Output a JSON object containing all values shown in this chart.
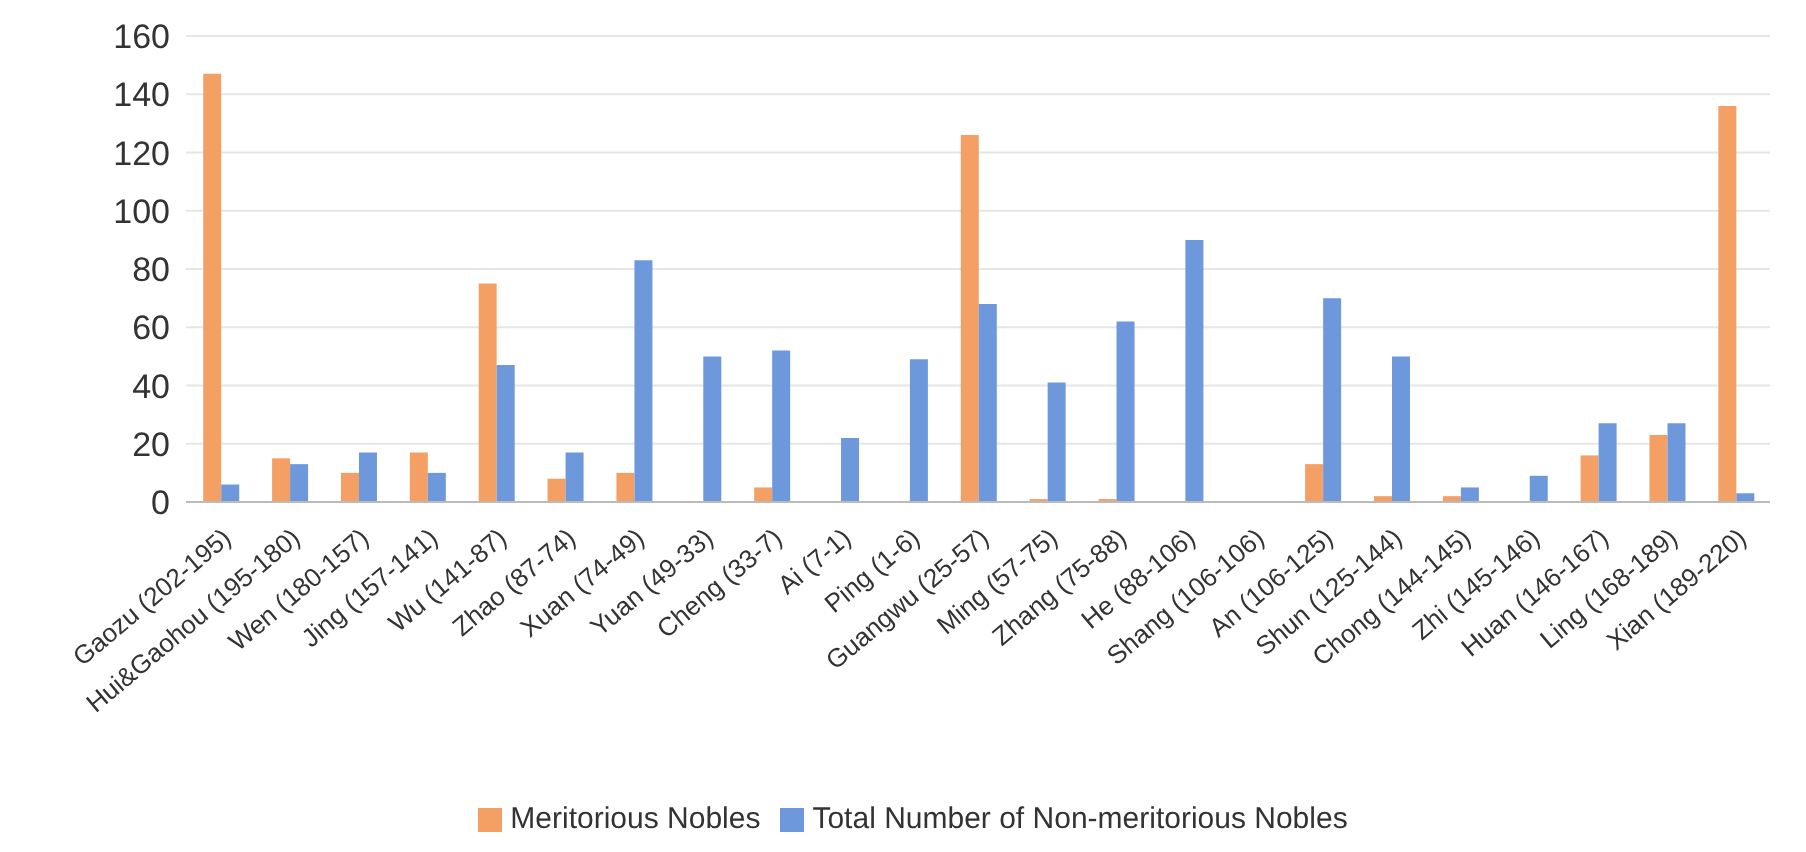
{
  "chart_data": {
    "type": "bar",
    "categories": [
      "Gaozu (202-195)",
      "Hui&Gaohou (195-180)",
      "Wen (180-157)",
      "Jing (157-141)",
      "Wu (141-87)",
      "Zhao (87-74)",
      "Xuan (74-49)",
      "Yuan (49-33)",
      "Cheng (33-7)",
      "Ai (7-1)",
      "Ping (1-6)",
      "Guangwu (25-57)",
      "Ming (57-75)",
      "Zhang (75-88)",
      "He (88-106)",
      "Shang (106-106)",
      "An (106-125)",
      "Shun (125-144)",
      "Chong (144-145)",
      "Zhi (145-146)",
      "Huan (146-167)",
      "Ling (168-189)",
      "Xian (189-220)"
    ],
    "series": [
      {
        "name": "Meritorious Nobles",
        "color": "#f4a064",
        "values": [
          147,
          15,
          10,
          17,
          75,
          8,
          10,
          0,
          5,
          0,
          0,
          126,
          1,
          1,
          0,
          0,
          13,
          2,
          2,
          0,
          16,
          23,
          136
        ]
      },
      {
        "name": "Total Number of Non-meritorious Nobles",
        "color": "#6e98dc",
        "values": [
          6,
          13,
          17,
          10,
          47,
          17,
          83,
          50,
          52,
          22,
          49,
          68,
          41,
          62,
          90,
          0,
          70,
          50,
          5,
          9,
          27,
          27,
          3
        ]
      }
    ],
    "ylim": [
      0,
      160
    ],
    "yticks": [
      0,
      20,
      40,
      60,
      80,
      100,
      120,
      140,
      160
    ],
    "grid": "y",
    "legend": "bottom"
  }
}
